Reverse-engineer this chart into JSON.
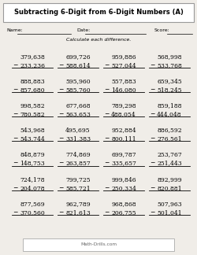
{
  "title": "Subtracting 6-Digit from 6-Digit Numbers (A)",
  "instruction": "Calculate each difference.",
  "background_color": "#e8e8e8",
  "page_color": "#f0ede8",
  "problems": [
    [
      "379,638",
      "233,236"
    ],
    [
      "699,726",
      "588,614"
    ],
    [
      "959,886",
      "527,044"
    ],
    [
      "568,998",
      "533,768"
    ],
    [
      "888,883",
      "857,680"
    ],
    [
      "595,960",
      "585,760"
    ],
    [
      "557,883",
      "146,080"
    ],
    [
      "659,345",
      "518,245"
    ],
    [
      "998,582",
      "780,582"
    ],
    [
      "677,668",
      "563,653"
    ],
    [
      "789,298",
      "488,054"
    ],
    [
      "859,188",
      "444,048"
    ],
    [
      "543,968",
      "543,744"
    ],
    [
      "495,695",
      "331,383"
    ],
    [
      "952,884",
      "800,111"
    ],
    [
      "886,592",
      "276,561"
    ],
    [
      "848,879",
      "148,753"
    ],
    [
      "774,869",
      "263,857"
    ],
    [
      "699,787",
      "335,657"
    ],
    [
      "253,767",
      "251,443"
    ],
    [
      "724,178",
      "204,078"
    ],
    [
      "799,725",
      "585,721"
    ],
    [
      "999,846",
      "250,334"
    ],
    [
      "892,999",
      "820,881"
    ],
    [
      "877,569",
      "370,560"
    ],
    [
      "962,789",
      "821,613"
    ],
    [
      "968,868",
      "206,755"
    ],
    [
      "507,963",
      "501,041"
    ]
  ],
  "cols": 4,
  "rows": 7,
  "footer": "Math-Drills.com",
  "title_fontsize": 6.0,
  "label_fontsize": 4.5,
  "problem_fontsize": 5.5,
  "footer_fontsize": 4.2
}
